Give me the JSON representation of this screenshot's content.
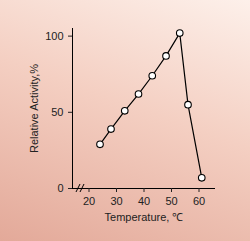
{
  "chart_data": {
    "type": "line",
    "x_label": "Temperature, ℃",
    "y_label": "Relative Activity,%",
    "x": [
      24,
      28,
      33,
      38,
      43,
      48,
      53,
      56,
      61
    ],
    "values": [
      29,
      39,
      51,
      62,
      74,
      87,
      102,
      55,
      7
    ],
    "color": "#000000",
    "marker": "circle",
    "xlim": [
      14,
      66
    ],
    "xticks": [
      20,
      30,
      40,
      50,
      60
    ],
    "ylim": [
      0,
      105
    ],
    "yticks": [
      0,
      50,
      100
    ],
    "grid": false
  }
}
